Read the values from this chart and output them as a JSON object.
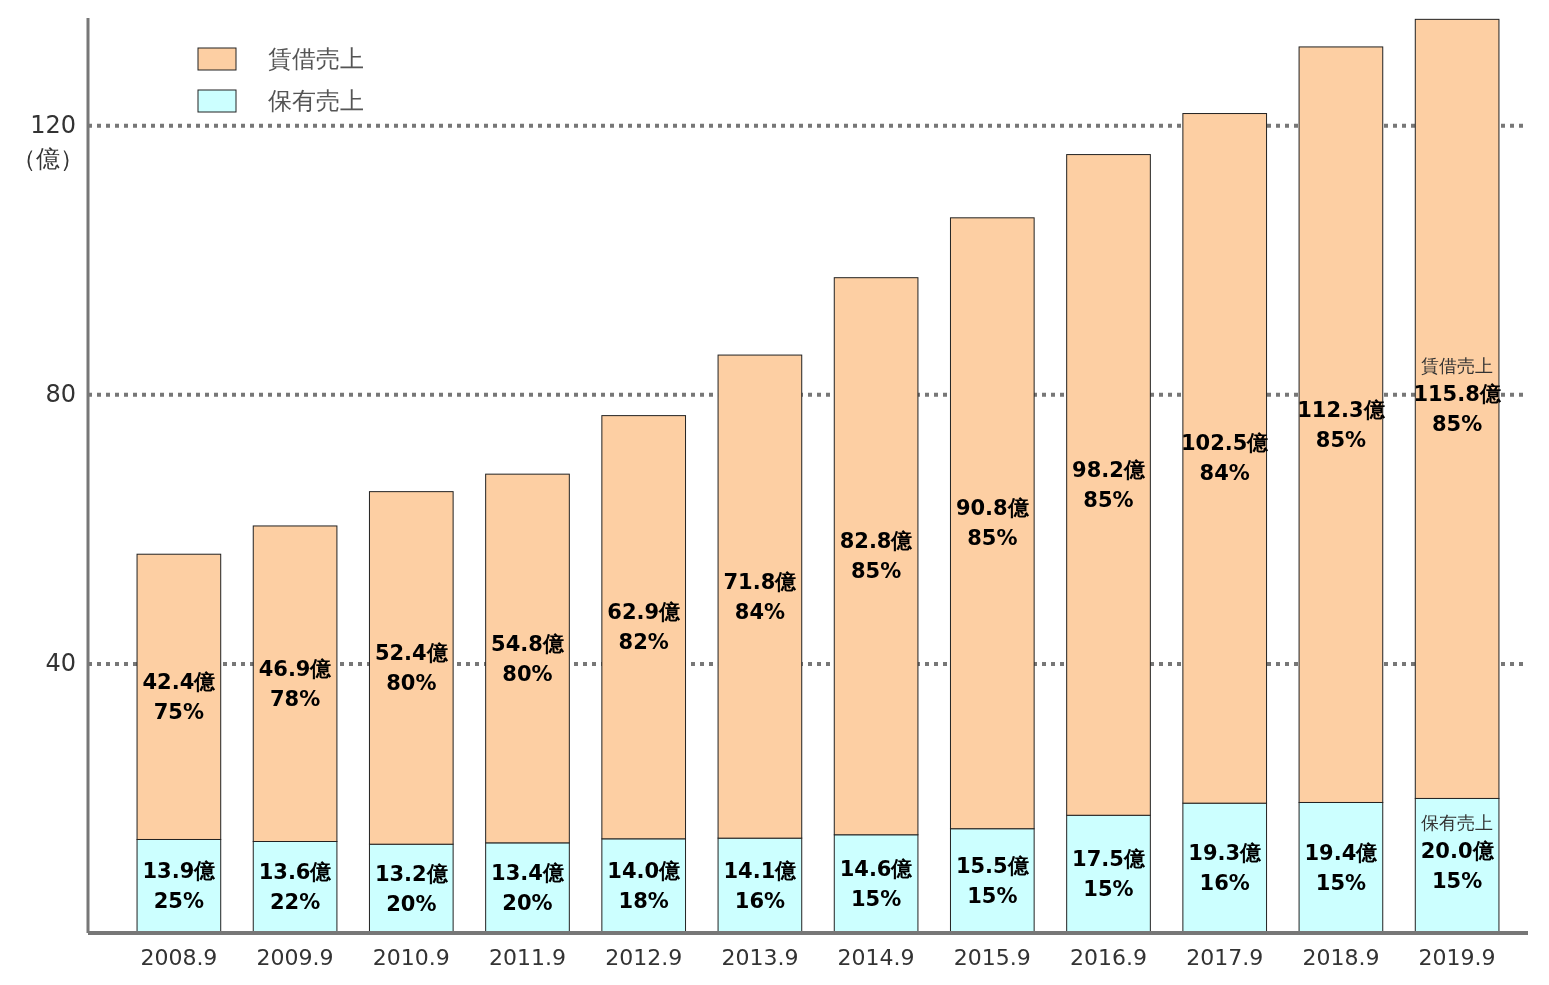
{
  "chart_data": {
    "type": "bar",
    "stacked": true,
    "ylabel": "（億）",
    "categories": [
      "2008.9",
      "2009.9",
      "2010.9",
      "2011.9",
      "2012.9",
      "2013.9",
      "2014.9",
      "2015.9",
      "2016.9",
      "2017.9",
      "2018.9",
      "2019.9"
    ],
    "series": [
      {
        "name": "保有売上",
        "color": "#ccffff",
        "values": [
          13.9,
          13.6,
          13.2,
          13.4,
          14.0,
          14.1,
          14.6,
          15.5,
          17.5,
          19.3,
          19.4,
          20.0
        ],
        "value_labels": [
          "13.9億\n25%",
          "13.6億\n22%",
          "13.2億\n20%",
          "13.4億\n20%",
          "14.0億\n18%",
          "14.1億\n16%",
          "14.6億\n15%",
          "15.5億\n15%",
          "17.5億\n15%",
          "19.3億\n16%",
          "19.4億\n15%",
          "20.0億\n15%"
        ]
      },
      {
        "name": "賃借売上",
        "color": "#fdcfa3",
        "values": [
          42.4,
          46.9,
          52.4,
          54.8,
          62.9,
          71.8,
          82.8,
          90.8,
          98.2,
          102.5,
          112.3,
          115.8
        ],
        "value_labels": [
          "42.4億\n75%",
          "46.9億\n78%",
          "52.4億\n80%",
          "54.8億\n80%",
          "62.9億\n82%",
          "71.8億\n84%",
          "82.8億\n85%",
          "90.8億\n85%",
          "98.2億\n85%",
          "102.5億\n84%",
          "112.3億\n85%",
          "115.8億\n85%"
        ]
      }
    ],
    "ylim": [
      0,
      136
    ],
    "yticks": [
      40,
      80,
      120
    ],
    "grid": "y",
    "legend": "top left",
    "annotations": [
      "賃借売上",
      "保有売上"
    ]
  }
}
